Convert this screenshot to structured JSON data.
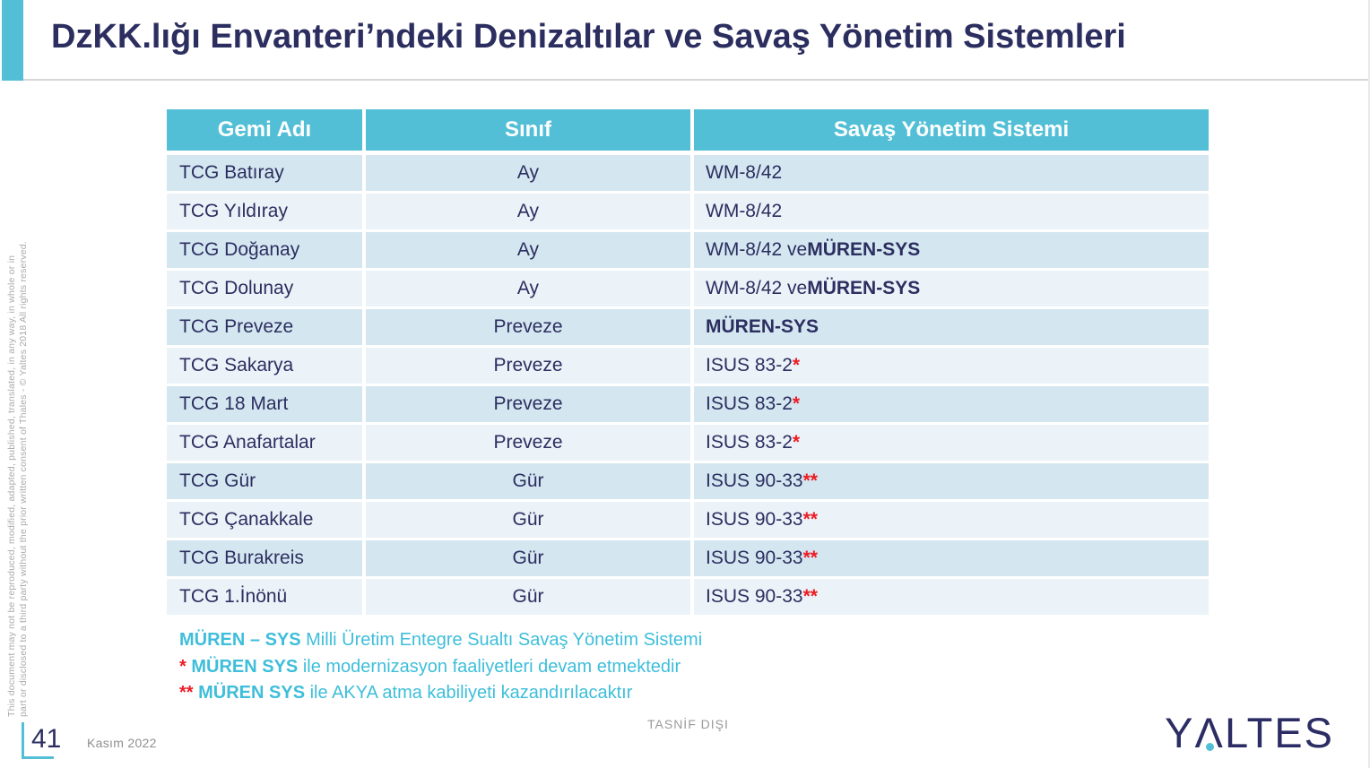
{
  "title": "DzKK.lığı Envanteri’ndeki Denizaltılar ve Savaş Yönetim Sistemleri",
  "side_note": {
    "line1": "This document may not be reproduced, modified, adapted, published, translated, in any way, in whole or in",
    "line2": "part or disclosed to a third party without the prior written consent of Thales - © Yaltes  2018 All rights reserved."
  },
  "table": {
    "headers": [
      "Gemi Adı",
      "Sınıf",
      "Savaş Yönetim Sistemi"
    ],
    "rows": [
      {
        "ship": "TCG Batıray",
        "class": "Ay",
        "cms": [
          {
            "text": "WM-8/42",
            "style": "normal"
          }
        ]
      },
      {
        "ship": "TCG Yıldıray",
        "class": "Ay",
        "cms": [
          {
            "text": "WM-8/42",
            "style": "normal"
          }
        ]
      },
      {
        "ship": "TCG Doğanay",
        "class": "Ay",
        "cms": [
          {
            "text": "WM-8/42 ve ",
            "style": "normal"
          },
          {
            "text": "MÜREN-SYS",
            "style": "bold"
          }
        ]
      },
      {
        "ship": "TCG Dolunay",
        "class": "Ay",
        "cms": [
          {
            "text": "WM-8/42 ve ",
            "style": "normal"
          },
          {
            "text": "MÜREN-SYS",
            "style": "bold"
          }
        ]
      },
      {
        "ship": "TCG Preveze",
        "class": "Preveze",
        "cms": [
          {
            "text": "MÜREN-SYS",
            "style": "bold"
          }
        ]
      },
      {
        "ship": "TCG Sakarya",
        "class": "Preveze",
        "cms": [
          {
            "text": "ISUS 83-2",
            "style": "normal"
          },
          {
            "text": "*",
            "style": "mark"
          }
        ]
      },
      {
        "ship": "TCG 18 Mart",
        "class": "Preveze",
        "cms": [
          {
            "text": "ISUS 83-2",
            "style": "normal"
          },
          {
            "text": "*",
            "style": "mark"
          }
        ]
      },
      {
        "ship": "TCG Anafartalar",
        "class": "Preveze",
        "cms": [
          {
            "text": "ISUS 83-2",
            "style": "normal"
          },
          {
            "text": "*",
            "style": "mark"
          }
        ]
      },
      {
        "ship": "TCG Gür",
        "class": "Gür",
        "cms": [
          {
            "text": "ISUS 90-33",
            "style": "normal"
          },
          {
            "text": "**",
            "style": "mark"
          }
        ]
      },
      {
        "ship": "TCG Çanakkale",
        "class": "Gür",
        "cms": [
          {
            "text": "ISUS 90-33",
            "style": "normal"
          },
          {
            "text": "**",
            "style": "mark"
          }
        ]
      },
      {
        "ship": "TCG Burakreis",
        "class": "Gür",
        "cms": [
          {
            "text": "ISUS 90-33",
            "style": "normal"
          },
          {
            "text": "**",
            "style": "mark"
          }
        ]
      },
      {
        "ship": "TCG 1.İnönü",
        "class": "Gür",
        "cms": [
          {
            "text": "ISUS 90-33",
            "style": "normal"
          },
          {
            "text": "**",
            "style": "mark"
          }
        ]
      }
    ]
  },
  "footnotes": [
    [
      {
        "text": "MÜREN – SYS",
        "style": "bold"
      },
      {
        "text": " Milli Üretim Entegre Sualtı Savaş Yönetim Sistemi",
        "style": "normal"
      }
    ],
    [
      {
        "text": "*",
        "style": "mark"
      },
      {
        "text": " MÜREN SYS",
        "style": "bold"
      },
      {
        "text": " ile modernizasyon faaliyetleri devam etmektedir",
        "style": "normal"
      }
    ],
    [
      {
        "text": "**",
        "style": "mark"
      },
      {
        "text": " MÜREN SYS",
        "style": "bold"
      },
      {
        "text": " ile AKYA atma kabiliyeti kazandırılacaktır",
        "style": "normal"
      }
    ]
  ],
  "footer": {
    "page_number": "41",
    "date": "Kasım 2022",
    "classification": "TASNİF DIŞI",
    "logo": {
      "pre": "Y",
      "a": "Λ",
      "post": "LTES"
    }
  },
  "colors": {
    "accent_teal": "#52BFD6",
    "row_dark": "#D4E7F0",
    "row_light": "#EBF3F8",
    "navy": "#2C2E60",
    "footnote_teal": "#3EBEDA",
    "mark_red": "#ED1C24"
  }
}
